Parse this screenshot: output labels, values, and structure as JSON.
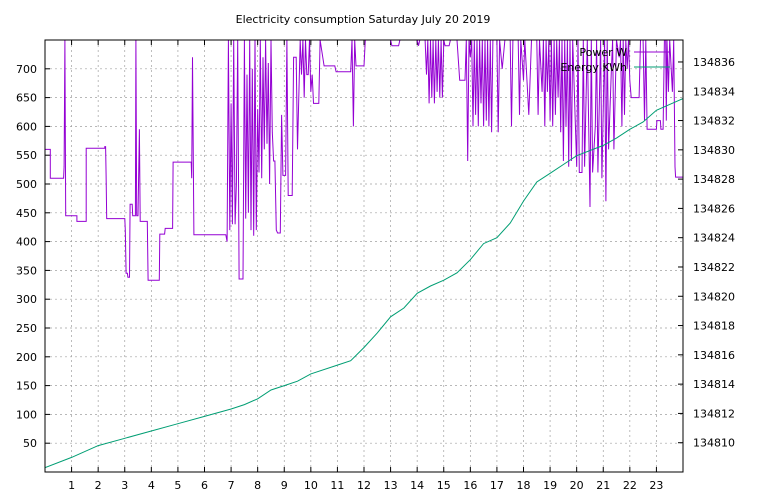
{
  "chart_data": {
    "type": "line",
    "title": "Electricity consumption Saturday July 20 2019",
    "xlabel": "",
    "ylabel": "",
    "y2label": "",
    "xlim": [
      0,
      24
    ],
    "ylim": [
      0,
      750
    ],
    "y2lim": [
      134808,
      134837.5
    ],
    "grid": true,
    "legend_position": "top-right",
    "x_ticks": [
      1,
      2,
      3,
      4,
      5,
      6,
      7,
      8,
      9,
      10,
      11,
      12,
      13,
      14,
      15,
      16,
      17,
      18,
      19,
      20,
      21,
      22,
      23
    ],
    "y_ticks": [
      50,
      100,
      150,
      200,
      250,
      300,
      350,
      400,
      450,
      500,
      550,
      600,
      650,
      700
    ],
    "y2_ticks": [
      134810,
      134812,
      134814,
      134816,
      134818,
      134820,
      134822,
      134824,
      134826,
      134828,
      134830,
      134832,
      134834,
      134836
    ],
    "series": [
      {
        "name": "Power W",
        "axis": "y",
        "color": "#9400d3",
        "points": [
          [
            0.0,
            560
          ],
          [
            0.2,
            560
          ],
          [
            0.2,
            510
          ],
          [
            0.7,
            510
          ],
          [
            0.72,
            530
          ],
          [
            0.75,
            750
          ],
          [
            0.78,
            445
          ],
          [
            1.2,
            445
          ],
          [
            1.2,
            435
          ],
          [
            1.55,
            435
          ],
          [
            1.55,
            562
          ],
          [
            2.25,
            562
          ],
          [
            2.25,
            565
          ],
          [
            2.28,
            565
          ],
          [
            2.3,
            515
          ],
          [
            2.32,
            440
          ],
          [
            3.0,
            440
          ],
          [
            3.02,
            420
          ],
          [
            3.05,
            345
          ],
          [
            3.1,
            345
          ],
          [
            3.12,
            338
          ],
          [
            3.18,
            338
          ],
          [
            3.2,
            465
          ],
          [
            3.28,
            465
          ],
          [
            3.3,
            445
          ],
          [
            3.4,
            445
          ],
          [
            3.42,
            750
          ],
          [
            3.45,
            445
          ],
          [
            3.5,
            445
          ],
          [
            3.55,
            595
          ],
          [
            3.58,
            435
          ],
          [
            3.85,
            435
          ],
          [
            3.88,
            333
          ],
          [
            4.3,
            333
          ],
          [
            4.32,
            413
          ],
          [
            4.5,
            413
          ],
          [
            4.52,
            423
          ],
          [
            4.8,
            423
          ],
          [
            4.82,
            538
          ],
          [
            5.5,
            538
          ],
          [
            5.52,
            510
          ],
          [
            5.55,
            720
          ],
          [
            5.6,
            412
          ],
          [
            6.8,
            412
          ],
          [
            6.85,
            400
          ],
          [
            6.9,
            750
          ],
          [
            6.95,
            420
          ],
          [
            7.0,
            640
          ],
          [
            7.05,
            430
          ],
          [
            7.1,
            750
          ],
          [
            7.15,
            430
          ],
          [
            7.2,
            500
          ],
          [
            7.25,
            750
          ],
          [
            7.3,
            335
          ],
          [
            7.45,
            335
          ],
          [
            7.5,
            750
          ],
          [
            7.55,
            440
          ],
          [
            7.6,
            690
          ],
          [
            7.65,
            450
          ],
          [
            7.7,
            750
          ],
          [
            7.75,
            420
          ],
          [
            7.8,
            700
          ],
          [
            7.85,
            410
          ],
          [
            7.9,
            750
          ],
          [
            7.95,
            420
          ],
          [
            8.0,
            630
          ],
          [
            8.05,
            520
          ],
          [
            8.1,
            750
          ],
          [
            8.15,
            510
          ],
          [
            8.2,
            720
          ],
          [
            8.25,
            560
          ],
          [
            8.3,
            750
          ],
          [
            8.35,
            570
          ],
          [
            8.4,
            710
          ],
          [
            8.45,
            500
          ],
          [
            8.5,
            750
          ],
          [
            8.55,
            590
          ],
          [
            8.6,
            540
          ],
          [
            8.65,
            540
          ],
          [
            8.7,
            420
          ],
          [
            8.75,
            415
          ],
          [
            8.85,
            415
          ],
          [
            8.9,
            620
          ],
          [
            8.95,
            515
          ],
          [
            9.05,
            515
          ],
          [
            9.1,
            750
          ],
          [
            9.15,
            480
          ],
          [
            9.3,
            480
          ],
          [
            9.35,
            720
          ],
          [
            9.45,
            720
          ],
          [
            9.5,
            560
          ],
          [
            9.6,
            750
          ],
          [
            9.65,
            690
          ],
          [
            9.7,
            750
          ],
          [
            9.75,
            650
          ],
          [
            9.8,
            750
          ],
          [
            9.85,
            690
          ],
          [
            9.9,
            690
          ],
          [
            9.95,
            750
          ],
          [
            10.0,
            660
          ],
          [
            10.05,
            690
          ],
          [
            10.1,
            640
          ],
          [
            10.3,
            640
          ],
          [
            10.35,
            750
          ],
          [
            10.5,
            705
          ],
          [
            10.9,
            705
          ],
          [
            10.95,
            695
          ],
          [
            11.5,
            695
          ],
          [
            11.55,
            750
          ],
          [
            11.6,
            600
          ],
          [
            11.65,
            750
          ],
          [
            11.7,
            705
          ],
          [
            12.0,
            705
          ],
          [
            12.05,
            750
          ],
          [
            12.95,
            750
          ],
          [
            13.0,
            750
          ],
          [
            13.05,
            740
          ],
          [
            13.3,
            740
          ],
          [
            13.35,
            750
          ],
          [
            14.0,
            750
          ],
          [
            14.05,
            740
          ],
          [
            14.1,
            750
          ],
          [
            14.3,
            750
          ],
          [
            14.35,
            690
          ],
          [
            14.4,
            750
          ],
          [
            14.45,
            640
          ],
          [
            14.5,
            750
          ],
          [
            14.55,
            650
          ],
          [
            14.6,
            750
          ],
          [
            14.65,
            640
          ],
          [
            14.7,
            750
          ],
          [
            14.75,
            660
          ],
          [
            14.8,
            750
          ],
          [
            14.85,
            650
          ],
          [
            14.9,
            750
          ],
          [
            14.95,
            650
          ],
          [
            15.0,
            750
          ],
          [
            15.05,
            740
          ],
          [
            15.2,
            740
          ],
          [
            15.25,
            750
          ],
          [
            15.5,
            750
          ],
          [
            15.6,
            680
          ],
          [
            15.8,
            680
          ],
          [
            15.85,
            750
          ],
          [
            15.9,
            540
          ],
          [
            15.95,
            750
          ],
          [
            16.0,
            720
          ],
          [
            16.05,
            750
          ],
          [
            16.1,
            600
          ],
          [
            16.15,
            750
          ],
          [
            16.2,
            620
          ],
          [
            16.25,
            750
          ],
          [
            16.3,
            600
          ],
          [
            16.35,
            750
          ],
          [
            16.4,
            640
          ],
          [
            16.45,
            750
          ],
          [
            16.5,
            600
          ],
          [
            16.55,
            750
          ],
          [
            16.6,
            610
          ],
          [
            16.65,
            750
          ],
          [
            16.7,
            600
          ],
          [
            16.75,
            750
          ],
          [
            16.8,
            590
          ],
          [
            16.85,
            750
          ],
          [
            16.9,
            750
          ],
          [
            17.0,
            750
          ],
          [
            17.05,
            590
          ],
          [
            17.1,
            750
          ],
          [
            17.2,
            700
          ],
          [
            17.3,
            750
          ],
          [
            17.5,
            750
          ],
          [
            17.55,
            600
          ],
          [
            17.6,
            750
          ],
          [
            17.8,
            750
          ],
          [
            17.85,
            620
          ],
          [
            17.9,
            750
          ],
          [
            18.0,
            680
          ],
          [
            18.05,
            750
          ],
          [
            18.2,
            620
          ],
          [
            18.3,
            750
          ],
          [
            18.5,
            750
          ],
          [
            18.55,
            620
          ],
          [
            18.6,
            750
          ],
          [
            18.7,
            660
          ],
          [
            18.75,
            750
          ],
          [
            18.8,
            600
          ],
          [
            18.85,
            750
          ],
          [
            18.9,
            660
          ],
          [
            18.95,
            750
          ],
          [
            19.0,
            610
          ],
          [
            19.05,
            750
          ],
          [
            19.1,
            600
          ],
          [
            19.15,
            750
          ],
          [
            19.2,
            620
          ],
          [
            19.25,
            750
          ],
          [
            19.3,
            650
          ],
          [
            19.35,
            750
          ],
          [
            19.4,
            590
          ],
          [
            19.45,
            750
          ],
          [
            19.5,
            540
          ],
          [
            19.55,
            750
          ],
          [
            19.6,
            600
          ],
          [
            19.65,
            750
          ],
          [
            19.7,
            530
          ],
          [
            19.75,
            750
          ],
          [
            19.8,
            540
          ],
          [
            19.85,
            750
          ],
          [
            20.0,
            530
          ],
          [
            20.05,
            750
          ],
          [
            20.1,
            520
          ],
          [
            20.2,
            520
          ],
          [
            20.25,
            750
          ],
          [
            20.3,
            530
          ],
          [
            20.4,
            750
          ],
          [
            20.5,
            460
          ],
          [
            20.55,
            750
          ],
          [
            20.6,
            520
          ],
          [
            20.7,
            600
          ],
          [
            20.75,
            750
          ],
          [
            20.8,
            520
          ],
          [
            20.9,
            750
          ],
          [
            20.95,
            510
          ],
          [
            21.05,
            750
          ],
          [
            21.1,
            470
          ],
          [
            21.15,
            750
          ],
          [
            21.2,
            560
          ],
          [
            21.3,
            690
          ],
          [
            21.35,
            750
          ],
          [
            21.4,
            560
          ],
          [
            21.5,
            750
          ],
          [
            21.6,
            720
          ],
          [
            21.65,
            750
          ],
          [
            21.7,
            600
          ],
          [
            21.75,
            750
          ],
          [
            21.8,
            620
          ],
          [
            21.85,
            750
          ],
          [
            21.9,
            700
          ],
          [
            21.95,
            750
          ],
          [
            22.0,
            680
          ],
          [
            22.05,
            650
          ],
          [
            22.35,
            650
          ],
          [
            22.4,
            750
          ],
          [
            22.5,
            750
          ],
          [
            22.55,
            610
          ],
          [
            22.6,
            750
          ],
          [
            22.65,
            595
          ],
          [
            22.95,
            595
          ],
          [
            23.0,
            595
          ],
          [
            23.02,
            610
          ],
          [
            23.1,
            610
          ],
          [
            23.15,
            610
          ],
          [
            23.17,
            595
          ],
          [
            23.25,
            595
          ],
          [
            23.3,
            750
          ],
          [
            23.35,
            750
          ],
          [
            23.37,
            610
          ],
          [
            23.4,
            750
          ],
          [
            23.45,
            660
          ],
          [
            23.5,
            750
          ],
          [
            23.6,
            660
          ],
          [
            23.65,
            750
          ],
          [
            23.7,
            530
          ],
          [
            23.72,
            512
          ],
          [
            24.0,
            512
          ]
        ]
      },
      {
        "name": "Energy KWh",
        "axis": "y2",
        "color": "#009e73",
        "points": [
          [
            0.0,
            134808.3
          ],
          [
            1.0,
            134809.0
          ],
          [
            2.0,
            134809.8
          ],
          [
            3.0,
            134810.3
          ],
          [
            4.0,
            134810.8
          ],
          [
            5.0,
            134811.3
          ],
          [
            6.0,
            134811.8
          ],
          [
            7.0,
            134812.3
          ],
          [
            7.5,
            134812.6
          ],
          [
            8.0,
            134813.0
          ],
          [
            8.5,
            134813.6
          ],
          [
            9.0,
            134813.9
          ],
          [
            9.5,
            134814.2
          ],
          [
            10.0,
            134814.7
          ],
          [
            11.0,
            134815.3
          ],
          [
            11.5,
            134815.6
          ],
          [
            12.0,
            134816.5
          ],
          [
            12.5,
            134817.5
          ],
          [
            13.0,
            134818.6
          ],
          [
            13.5,
            134819.2
          ],
          [
            14.0,
            134820.2
          ],
          [
            14.5,
            134820.7
          ],
          [
            15.0,
            134821.1
          ],
          [
            15.5,
            134821.6
          ],
          [
            16.0,
            134822.5
          ],
          [
            16.5,
            134823.6
          ],
          [
            17.0,
            134824.0
          ],
          [
            17.5,
            134825.0
          ],
          [
            18.0,
            134826.5
          ],
          [
            18.5,
            134827.8
          ],
          [
            19.0,
            134828.4
          ],
          [
            19.5,
            134829.0
          ],
          [
            20.0,
            134829.6
          ],
          [
            21.0,
            134830.3
          ],
          [
            21.5,
            134830.8
          ],
          [
            22.0,
            134831.4
          ],
          [
            22.5,
            134831.9
          ],
          [
            23.0,
            134832.7
          ],
          [
            23.5,
            134833.1
          ],
          [
            24.0,
            134833.5
          ]
        ]
      }
    ]
  }
}
